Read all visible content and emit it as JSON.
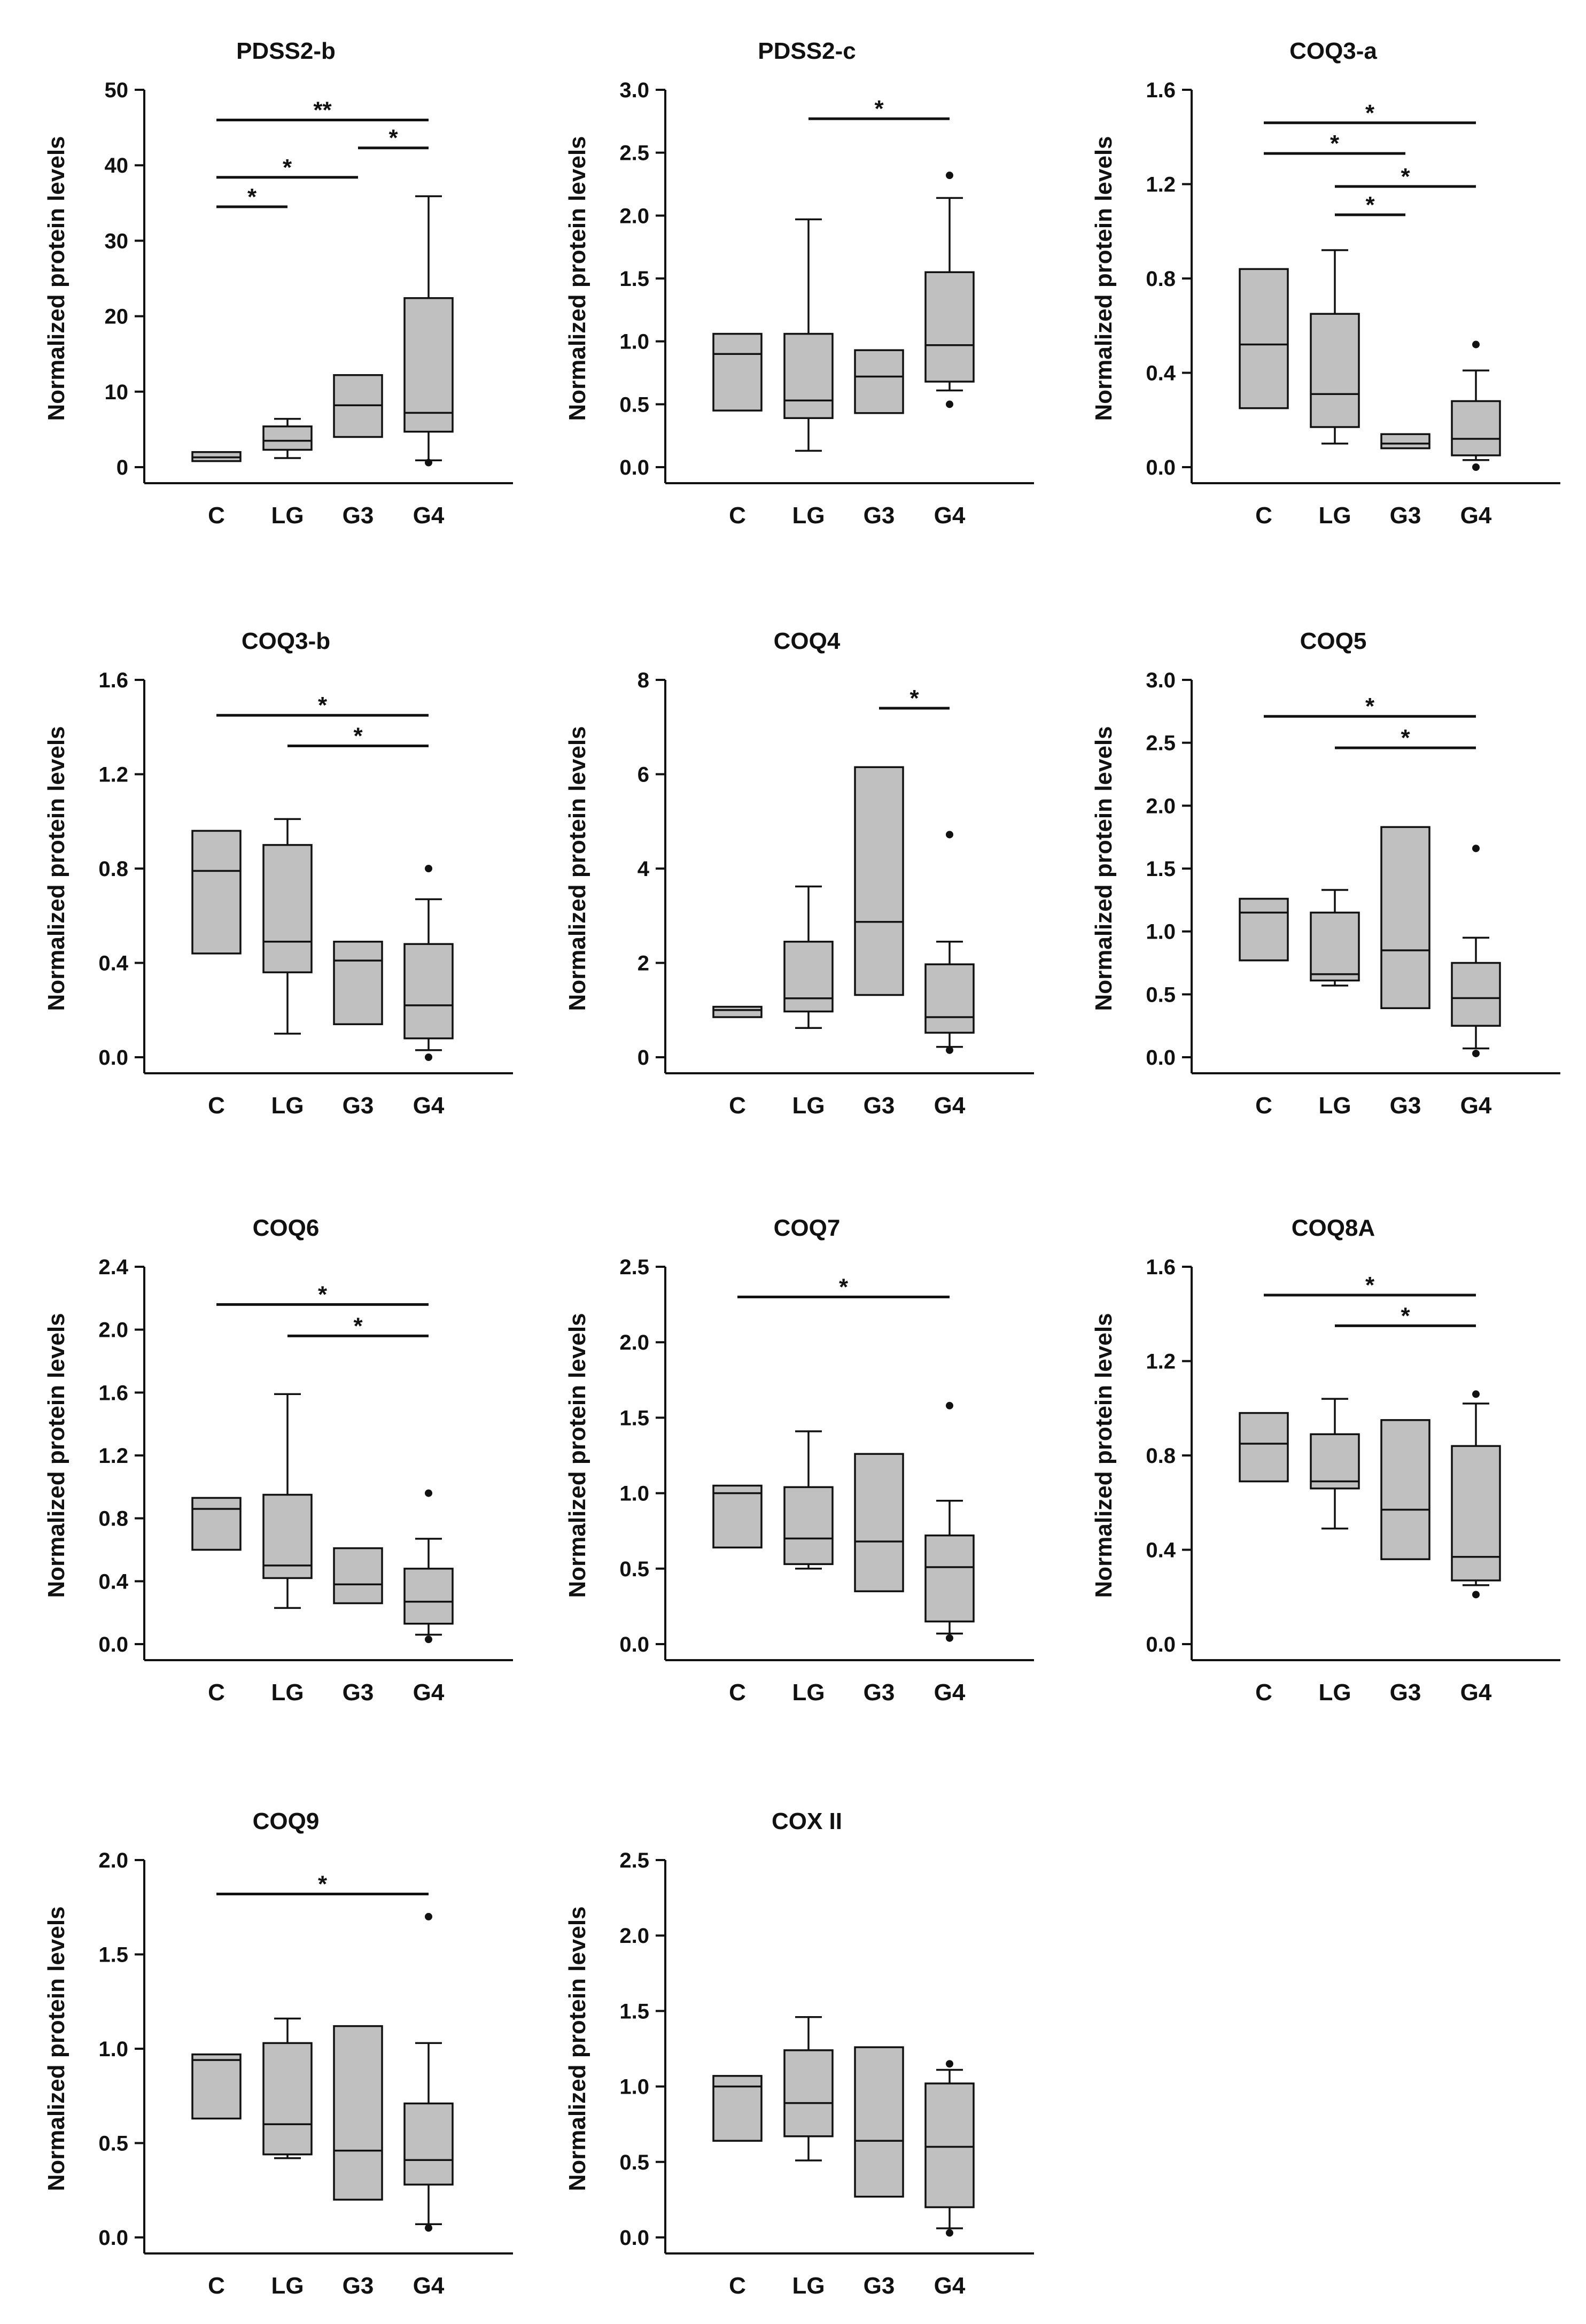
{
  "figure": {
    "background": "#ffffff",
    "box_fill": "#c0c0c0",
    "ink": "#111111"
  },
  "chart_data": [
    {
      "type": "box",
      "title": "PDSS2-b",
      "ylabel": "Normalized protein levels",
      "categories": [
        "C",
        "LG",
        "G3",
        "G4"
      ],
      "ylim": [
        0,
        50
      ],
      "yticks": [
        "0",
        "10",
        "20",
        "30",
        "40",
        "50"
      ],
      "boxes": [
        {
          "lo": 0.8,
          "q1": 0.8,
          "med": 1.3,
          "q3": 2.0,
          "hi": 2.0,
          "outliers": []
        },
        {
          "lo": 1.2,
          "q1": 2.3,
          "med": 3.5,
          "q3": 5.4,
          "hi": 6.4,
          "outliers": []
        },
        {
          "lo": 4.0,
          "q1": 4.0,
          "med": 8.2,
          "q3": 12.2,
          "hi": 12.2,
          "outliers": []
        },
        {
          "lo": 0.9,
          "q1": 4.7,
          "med": 7.2,
          "q3": 22.4,
          "hi": 35.9,
          "outliers": [
            0.6
          ]
        }
      ],
      "significance": [
        {
          "from": 0,
          "to": 3,
          "level": 46.0,
          "label": "**"
        },
        {
          "from": 2,
          "to": 3,
          "level": 42.3,
          "label": "*"
        },
        {
          "from": 0,
          "to": 2,
          "level": 38.4,
          "label": "*"
        },
        {
          "from": 0,
          "to": 1,
          "level": 34.5,
          "label": "*"
        }
      ]
    },
    {
      "type": "box",
      "title": "PDSS2-c",
      "ylabel": "Normalized protein levels",
      "categories": [
        "C",
        "LG",
        "G3",
        "G4"
      ],
      "ylim": [
        0,
        3.0
      ],
      "yticks": [
        "0.0",
        "0.5",
        "1.0",
        "1.5",
        "2.0",
        "2.5",
        "3.0"
      ],
      "boxes": [
        {
          "lo": 0.45,
          "q1": 0.45,
          "med": 0.9,
          "q3": 1.06,
          "hi": 1.06,
          "outliers": []
        },
        {
          "lo": 0.13,
          "q1": 0.39,
          "med": 0.53,
          "q3": 1.06,
          "hi": 1.97,
          "outliers": []
        },
        {
          "lo": 0.43,
          "q1": 0.43,
          "med": 0.72,
          "q3": 0.93,
          "hi": 0.93,
          "outliers": []
        },
        {
          "lo": 0.61,
          "q1": 0.68,
          "med": 0.97,
          "q3": 1.55,
          "hi": 2.14,
          "outliers": [
            0.5,
            2.32
          ]
        }
      ],
      "significance": [
        {
          "from": 1,
          "to": 3,
          "level": 2.77,
          "label": "*"
        }
      ]
    },
    {
      "type": "box",
      "title": "COQ3-a",
      "ylabel": "Normalized protein levels",
      "categories": [
        "C",
        "LG",
        "G3",
        "G4"
      ],
      "ylim": [
        0,
        1.6
      ],
      "yticks": [
        "0.0",
        "0.4",
        "0.8",
        "1.2",
        "1.6"
      ],
      "boxes": [
        {
          "lo": 0.25,
          "q1": 0.25,
          "med": 0.52,
          "q3": 0.84,
          "hi": 0.84,
          "outliers": []
        },
        {
          "lo": 0.1,
          "q1": 0.17,
          "med": 0.31,
          "q3": 0.65,
          "hi": 0.92,
          "outliers": []
        },
        {
          "lo": 0.08,
          "q1": 0.08,
          "med": 0.1,
          "q3": 0.14,
          "hi": 0.14,
          "outliers": []
        },
        {
          "lo": 0.03,
          "q1": 0.05,
          "med": 0.12,
          "q3": 0.28,
          "hi": 0.41,
          "outliers": [
            0.0,
            0.52
          ]
        }
      ],
      "significance": [
        {
          "from": 0,
          "to": 3,
          "level": 1.46,
          "label": "*"
        },
        {
          "from": 0,
          "to": 2,
          "level": 1.33,
          "label": "*"
        },
        {
          "from": 1,
          "to": 3,
          "level": 1.19,
          "label": "*"
        },
        {
          "from": 1,
          "to": 2,
          "level": 1.07,
          "label": "*"
        }
      ]
    },
    {
      "type": "box",
      "title": "COQ3-b",
      "ylabel": "Normalized protein levels",
      "categories": [
        "C",
        "LG",
        "G3",
        "G4"
      ],
      "ylim": [
        0,
        1.6
      ],
      "yticks": [
        "0.0",
        "0.4",
        "0.8",
        "1.2",
        "1.6"
      ],
      "boxes": [
        {
          "lo": 0.44,
          "q1": 0.44,
          "med": 0.79,
          "q3": 0.96,
          "hi": 0.96,
          "outliers": []
        },
        {
          "lo": 0.1,
          "q1": 0.36,
          "med": 0.49,
          "q3": 0.9,
          "hi": 1.01,
          "outliers": []
        },
        {
          "lo": 0.14,
          "q1": 0.14,
          "med": 0.41,
          "q3": 0.49,
          "hi": 0.49,
          "outliers": []
        },
        {
          "lo": 0.03,
          "q1": 0.08,
          "med": 0.22,
          "q3": 0.48,
          "hi": 0.67,
          "outliers": [
            0.0,
            0.8
          ]
        }
      ],
      "significance": [
        {
          "from": 0,
          "to": 3,
          "level": 1.45,
          "label": "*"
        },
        {
          "from": 1,
          "to": 3,
          "level": 1.32,
          "label": "*"
        }
      ]
    },
    {
      "type": "box",
      "title": "COQ4",
      "ylabel": "Normalized protein levels",
      "categories": [
        "C",
        "LG",
        "G3",
        "G4"
      ],
      "ylim": [
        0,
        8
      ],
      "yticks": [
        "0",
        "2",
        "4",
        "6",
        "8"
      ],
      "boxes": [
        {
          "lo": 0.85,
          "q1": 0.85,
          "med": 1.0,
          "q3": 1.07,
          "hi": 1.07,
          "outliers": []
        },
        {
          "lo": 0.62,
          "q1": 0.97,
          "med": 1.25,
          "q3": 2.45,
          "hi": 3.62,
          "outliers": []
        },
        {
          "lo": 1.32,
          "q1": 1.32,
          "med": 2.87,
          "q3": 6.15,
          "hi": 6.15,
          "outliers": []
        },
        {
          "lo": 0.22,
          "q1": 0.52,
          "med": 0.85,
          "q3": 1.97,
          "hi": 2.45,
          "outliers": [
            0.15,
            4.72
          ]
        }
      ],
      "significance": [
        {
          "from": 2,
          "to": 3,
          "level": 7.4,
          "label": "*"
        }
      ]
    },
    {
      "type": "box",
      "title": "COQ5",
      "ylabel": "Normalized protein levels",
      "categories": [
        "C",
        "LG",
        "G3",
        "G4"
      ],
      "ylim": [
        0,
        3.0
      ],
      "yticks": [
        "0.0",
        "0.5",
        "1.0",
        "1.5",
        "2.0",
        "2.5",
        "3.0"
      ],
      "boxes": [
        {
          "lo": 0.77,
          "q1": 0.77,
          "med": 1.15,
          "q3": 1.26,
          "hi": 1.26,
          "outliers": []
        },
        {
          "lo": 0.57,
          "q1": 0.61,
          "med": 0.66,
          "q3": 1.15,
          "hi": 1.33,
          "outliers": []
        },
        {
          "lo": 0.39,
          "q1": 0.39,
          "med": 0.85,
          "q3": 1.83,
          "hi": 1.83,
          "outliers": []
        },
        {
          "lo": 0.07,
          "q1": 0.25,
          "med": 0.47,
          "q3": 0.75,
          "hi": 0.95,
          "outliers": [
            0.03,
            1.66
          ]
        }
      ],
      "significance": [
        {
          "from": 0,
          "to": 3,
          "level": 2.71,
          "label": "*"
        },
        {
          "from": 1,
          "to": 3,
          "level": 2.46,
          "label": "*"
        }
      ]
    },
    {
      "type": "box",
      "title": "COQ6",
      "ylabel": "Normalized protein levels",
      "categories": [
        "C",
        "LG",
        "G3",
        "G4"
      ],
      "ylim": [
        0,
        2.4
      ],
      "yticks": [
        "0.0",
        "0.4",
        "0.8",
        "1.2",
        "1.6",
        "2.0",
        "2.4"
      ],
      "boxes": [
        {
          "lo": 0.6,
          "q1": 0.6,
          "med": 0.86,
          "q3": 0.93,
          "hi": 0.93,
          "outliers": []
        },
        {
          "lo": 0.23,
          "q1": 0.42,
          "med": 0.5,
          "q3": 0.95,
          "hi": 1.59,
          "outliers": []
        },
        {
          "lo": 0.26,
          "q1": 0.26,
          "med": 0.38,
          "q3": 0.61,
          "hi": 0.61,
          "outliers": []
        },
        {
          "lo": 0.06,
          "q1": 0.13,
          "med": 0.27,
          "q3": 0.48,
          "hi": 0.67,
          "outliers": [
            0.03,
            0.96
          ]
        }
      ],
      "significance": [
        {
          "from": 0,
          "to": 3,
          "level": 2.16,
          "label": "*"
        },
        {
          "from": 1,
          "to": 3,
          "level": 1.96,
          "label": "*"
        }
      ]
    },
    {
      "type": "box",
      "title": "COQ7",
      "ylabel": "Normalized protein levels",
      "categories": [
        "C",
        "LG",
        "G3",
        "G4"
      ],
      "ylim": [
        0,
        2.5
      ],
      "yticks": [
        "0.0",
        "0.5",
        "1.0",
        "1.5",
        "2.0",
        "2.5"
      ],
      "boxes": [
        {
          "lo": 0.64,
          "q1": 0.64,
          "med": 1.0,
          "q3": 1.05,
          "hi": 1.05,
          "outliers": []
        },
        {
          "lo": 0.5,
          "q1": 0.53,
          "med": 0.7,
          "q3": 1.04,
          "hi": 1.41,
          "outliers": []
        },
        {
          "lo": 0.35,
          "q1": 0.35,
          "med": 0.68,
          "q3": 1.26,
          "hi": 1.26,
          "outliers": []
        },
        {
          "lo": 0.07,
          "q1": 0.15,
          "med": 0.51,
          "q3": 0.72,
          "hi": 0.95,
          "outliers": [
            0.04,
            1.58
          ]
        }
      ],
      "significance": [
        {
          "from": 0,
          "to": 3,
          "level": 2.3,
          "label": "*"
        }
      ]
    },
    {
      "type": "box",
      "title": "COQ8A",
      "ylabel": "Normalized protein levels",
      "categories": [
        "C",
        "LG",
        "G3",
        "G4"
      ],
      "ylim": [
        0,
        1.6
      ],
      "yticks": [
        "0.0",
        "0.4",
        "0.8",
        "1.2",
        "1.6"
      ],
      "boxes": [
        {
          "lo": 0.69,
          "q1": 0.69,
          "med": 0.85,
          "q3": 0.98,
          "hi": 0.98,
          "outliers": []
        },
        {
          "lo": 0.49,
          "q1": 0.66,
          "med": 0.69,
          "q3": 0.89,
          "hi": 1.04,
          "outliers": []
        },
        {
          "lo": 0.36,
          "q1": 0.36,
          "med": 0.57,
          "q3": 0.95,
          "hi": 0.95,
          "outliers": []
        },
        {
          "lo": 0.25,
          "q1": 0.27,
          "med": 0.37,
          "q3": 0.84,
          "hi": 1.02,
          "outliers": [
            0.21,
            1.06
          ]
        }
      ],
      "significance": [
        {
          "from": 0,
          "to": 3,
          "level": 1.48,
          "label": "*"
        },
        {
          "from": 1,
          "to": 3,
          "level": 1.35,
          "label": "*"
        }
      ]
    },
    {
      "type": "box",
      "title": "COQ9",
      "ylabel": "Normalized protein levels",
      "categories": [
        "C",
        "LG",
        "G3",
        "G4"
      ],
      "ylim": [
        0,
        2.0
      ],
      "yticks": [
        "0.0",
        "0.5",
        "1.0",
        "1.5",
        "2.0"
      ],
      "boxes": [
        {
          "lo": 0.63,
          "q1": 0.63,
          "med": 0.94,
          "q3": 0.97,
          "hi": 0.97,
          "outliers": []
        },
        {
          "lo": 0.42,
          "q1": 0.44,
          "med": 0.6,
          "q3": 1.03,
          "hi": 1.16,
          "outliers": []
        },
        {
          "lo": 0.2,
          "q1": 0.2,
          "med": 0.46,
          "q3": 1.12,
          "hi": 1.12,
          "outliers": []
        },
        {
          "lo": 0.07,
          "q1": 0.28,
          "med": 0.41,
          "q3": 0.71,
          "hi": 1.03,
          "outliers": [
            0.05,
            1.7
          ]
        }
      ],
      "significance": [
        {
          "from": 0,
          "to": 3,
          "level": 1.82,
          "label": "*"
        }
      ]
    },
    {
      "type": "box",
      "title": "COX II",
      "ylabel": "Normalized protein levels",
      "categories": [
        "C",
        "LG",
        "G3",
        "G4"
      ],
      "ylim": [
        0,
        2.5
      ],
      "yticks": [
        "0.0",
        "0.5",
        "1.0",
        "1.5",
        "2.0",
        "2.5"
      ],
      "boxes": [
        {
          "lo": 0.64,
          "q1": 0.64,
          "med": 1.0,
          "q3": 1.07,
          "hi": 1.07,
          "outliers": []
        },
        {
          "lo": 0.51,
          "q1": 0.67,
          "med": 0.89,
          "q3": 1.24,
          "hi": 1.46,
          "outliers": []
        },
        {
          "lo": 0.27,
          "q1": 0.27,
          "med": 0.64,
          "q3": 1.26,
          "hi": 1.26,
          "outliers": []
        },
        {
          "lo": 0.06,
          "q1": 0.2,
          "med": 0.6,
          "q3": 1.02,
          "hi": 1.11,
          "outliers": [
            0.03,
            1.15
          ]
        }
      ],
      "significance": []
    }
  ]
}
